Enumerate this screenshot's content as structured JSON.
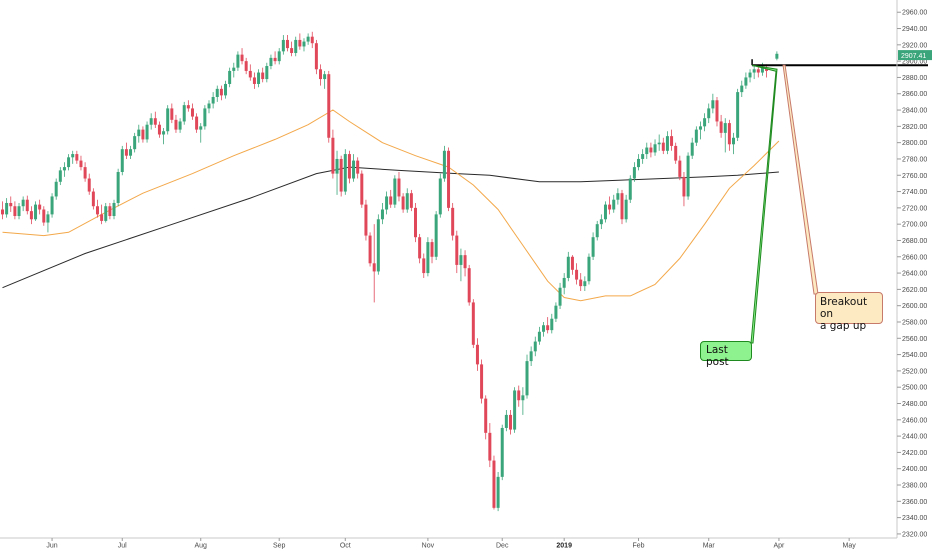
{
  "colors": {
    "up": "#3aa57a",
    "down": "#e0485a",
    "ma_short": "#f3a84a",
    "ma_long": "#2a2a2a",
    "price_tag_bg": "#3aa57a",
    "last_post_bg": "#8ef28e",
    "last_post_line": "#1f8a1f",
    "breakout_bg": "#fde9c2",
    "breakout_line": "#c77a6a",
    "level_line": "#000000"
  },
  "chart_data": {
    "type": "candlestick",
    "y_ticks": [
      "2320.00",
      "2340.00",
      "2360.00",
      "2380.00",
      "2400.00",
      "2420.00",
      "2440.00",
      "2460.00",
      "2480.00",
      "2500.00",
      "2520.00",
      "2540.00",
      "2560.00",
      "2580.00",
      "2600.00",
      "2620.00",
      "2640.00",
      "2660.00",
      "2680.00",
      "2700.00",
      "2720.00",
      "2740.00",
      "2760.00",
      "2780.00",
      "2800.00",
      "2820.00",
      "2840.00",
      "2860.00",
      "2880.00",
      "2900.00",
      "2920.00",
      "2940.00",
      "2960.00"
    ],
    "ylim": [
      2315,
      2975
    ],
    "x_ticks": [
      "Jun",
      "Jul",
      "Aug",
      "Sep",
      "Oct",
      "Nov",
      "Dec",
      "2019",
      "Feb",
      "Mar",
      "Apr",
      "May"
    ],
    "x_tick_bold": "2019",
    "last_price_label": "2907.41",
    "last_price": 2907.41,
    "resistance_level": 2895,
    "candles": [
      [
        2718,
        2728,
        2706,
        2712
      ],
      [
        2712,
        2732,
        2708,
        2726
      ],
      [
        2726,
        2734,
        2715,
        2722
      ],
      [
        2722,
        2728,
        2706,
        2710
      ],
      [
        2710,
        2726,
        2706,
        2722
      ],
      [
        2722,
        2734,
        2716,
        2730
      ],
      [
        2730,
        2735,
        2712,
        2716
      ],
      [
        2716,
        2722,
        2700,
        2706
      ],
      [
        2706,
        2728,
        2704,
        2724
      ],
      [
        2724,
        2730,
        2712,
        2718
      ],
      [
        2718,
        2722,
        2698,
        2702
      ],
      [
        2702,
        2716,
        2690,
        2712
      ],
      [
        2712,
        2738,
        2708,
        2734
      ],
      [
        2734,
        2756,
        2730,
        2752
      ],
      [
        2752,
        2770,
        2748,
        2766
      ],
      [
        2766,
        2776,
        2758,
        2770
      ],
      [
        2770,
        2786,
        2766,
        2782
      ],
      [
        2782,
        2790,
        2774,
        2786
      ],
      [
        2786,
        2790,
        2774,
        2778
      ],
      [
        2778,
        2784,
        2766,
        2770
      ],
      [
        2770,
        2776,
        2752,
        2756
      ],
      [
        2756,
        2762,
        2736,
        2740
      ],
      [
        2740,
        2744,
        2718,
        2722
      ],
      [
        2722,
        2730,
        2708,
        2712
      ],
      [
        2712,
        2724,
        2700,
        2704
      ],
      [
        2704,
        2726,
        2702,
        2722
      ],
      [
        2722,
        2726,
        2706,
        2710
      ],
      [
        2710,
        2730,
        2706,
        2726
      ],
      [
        2726,
        2768,
        2722,
        2764
      ],
      [
        2764,
        2796,
        2760,
        2792
      ],
      [
        2792,
        2800,
        2780,
        2784
      ],
      [
        2784,
        2796,
        2780,
        2792
      ],
      [
        2792,
        2812,
        2788,
        2808
      ],
      [
        2808,
        2822,
        2800,
        2816
      ],
      [
        2816,
        2820,
        2800,
        2804
      ],
      [
        2804,
        2826,
        2800,
        2822
      ],
      [
        2822,
        2836,
        2816,
        2830
      ],
      [
        2830,
        2838,
        2818,
        2822
      ],
      [
        2822,
        2826,
        2806,
        2810
      ],
      [
        2810,
        2818,
        2798,
        2814
      ],
      [
        2814,
        2846,
        2810,
        2842
      ],
      [
        2842,
        2848,
        2824,
        2828
      ],
      [
        2828,
        2834,
        2812,
        2816
      ],
      [
        2816,
        2830,
        2812,
        2826
      ],
      [
        2826,
        2850,
        2822,
        2846
      ],
      [
        2846,
        2852,
        2838,
        2842
      ],
      [
        2842,
        2848,
        2828,
        2832
      ],
      [
        2832,
        2836,
        2812,
        2816
      ],
      [
        2816,
        2824,
        2800,
        2820
      ],
      [
        2820,
        2846,
        2816,
        2842
      ],
      [
        2842,
        2852,
        2836,
        2848
      ],
      [
        2848,
        2862,
        2842,
        2856
      ],
      [
        2856,
        2870,
        2850,
        2866
      ],
      [
        2866,
        2870,
        2852,
        2858
      ],
      [
        2858,
        2876,
        2854,
        2872
      ],
      [
        2872,
        2892,
        2868,
        2888
      ],
      [
        2888,
        2898,
        2880,
        2892
      ],
      [
        2892,
        2912,
        2888,
        2908
      ],
      [
        2908,
        2916,
        2896,
        2900
      ],
      [
        2900,
        2904,
        2884,
        2888
      ],
      [
        2888,
        2896,
        2876,
        2880
      ],
      [
        2880,
        2886,
        2866,
        2872
      ],
      [
        2872,
        2890,
        2868,
        2886
      ],
      [
        2886,
        2892,
        2874,
        2878
      ],
      [
        2878,
        2898,
        2874,
        2894
      ],
      [
        2894,
        2908,
        2890,
        2904
      ],
      [
        2904,
        2912,
        2896,
        2900
      ],
      [
        2900,
        2916,
        2896,
        2912
      ],
      [
        2912,
        2932,
        2908,
        2926
      ],
      [
        2926,
        2932,
        2912,
        2916
      ],
      [
        2916,
        2924,
        2906,
        2910
      ],
      [
        2910,
        2930,
        2906,
        2926
      ],
      [
        2926,
        2934,
        2914,
        2918
      ],
      [
        2918,
        2928,
        2912,
        2924
      ],
      [
        2924,
        2934,
        2920,
        2930
      ],
      [
        2930,
        2936,
        2916,
        2922
      ],
      [
        2922,
        2926,
        2884,
        2890
      ],
      [
        2890,
        2896,
        2870,
        2878
      ],
      [
        2878,
        2888,
        2866,
        2884
      ],
      [
        2884,
        2888,
        2800,
        2806
      ],
      [
        2806,
        2816,
        2756,
        2762
      ],
      [
        2762,
        2790,
        2736,
        2780
      ],
      [
        2780,
        2784,
        2734,
        2740
      ],
      [
        2740,
        2792,
        2736,
        2786
      ],
      [
        2786,
        2790,
        2750,
        2756
      ],
      [
        2756,
        2786,
        2752,
        2778
      ],
      [
        2778,
        2782,
        2756,
        2762
      ],
      [
        2762,
        2766,
        2720,
        2724
      ],
      [
        2724,
        2730,
        2680,
        2686
      ],
      [
        2686,
        2690,
        2648,
        2652
      ],
      [
        2652,
        2700,
        2604,
        2642
      ],
      [
        2642,
        2712,
        2638,
        2706
      ],
      [
        2706,
        2726,
        2700,
        2718
      ],
      [
        2718,
        2740,
        2712,
        2734
      ],
      [
        2734,
        2742,
        2720,
        2724
      ],
      [
        2724,
        2760,
        2720,
        2756
      ],
      [
        2756,
        2764,
        2728,
        2734
      ],
      [
        2734,
        2738,
        2714,
        2718
      ],
      [
        2718,
        2744,
        2714,
        2738
      ],
      [
        2738,
        2742,
        2716,
        2720
      ],
      [
        2720,
        2726,
        2678,
        2684
      ],
      [
        2684,
        2688,
        2652,
        2658
      ],
      [
        2658,
        2664,
        2634,
        2640
      ],
      [
        2640,
        2684,
        2636,
        2678
      ],
      [
        2678,
        2682,
        2652,
        2660
      ],
      [
        2660,
        2716,
        2656,
        2712
      ],
      [
        2712,
        2762,
        2708,
        2756
      ],
      [
        2756,
        2796,
        2752,
        2790
      ],
      [
        2790,
        2794,
        2716,
        2720
      ],
      [
        2720,
        2726,
        2680,
        2686
      ],
      [
        2686,
        2692,
        2640,
        2650
      ],
      [
        2650,
        2670,
        2630,
        2662
      ],
      [
        2662,
        2668,
        2636,
        2646
      ],
      [
        2646,
        2650,
        2600,
        2604
      ],
      [
        2604,
        2608,
        2548,
        2552
      ],
      [
        2552,
        2560,
        2520,
        2528
      ],
      [
        2528,
        2534,
        2480,
        2486
      ],
      [
        2486,
        2490,
        2436,
        2444
      ],
      [
        2444,
        2456,
        2402,
        2410
      ],
      [
        2410,
        2416,
        2350,
        2352
      ],
      [
        2352,
        2396,
        2348,
        2390
      ],
      [
        2390,
        2454,
        2386,
        2450
      ],
      [
        2450,
        2472,
        2446,
        2466
      ],
      [
        2466,
        2472,
        2442,
        2448
      ],
      [
        2448,
        2500,
        2444,
        2496
      ],
      [
        2496,
        2502,
        2476,
        2484
      ],
      [
        2484,
        2500,
        2466,
        2490
      ],
      [
        2490,
        2540,
        2486,
        2532
      ],
      [
        2532,
        2550,
        2526,
        2544
      ],
      [
        2544,
        2562,
        2538,
        2556
      ],
      [
        2556,
        2574,
        2552,
        2568
      ],
      [
        2568,
        2580,
        2562,
        2576
      ],
      [
        2576,
        2586,
        2566,
        2570
      ],
      [
        2570,
        2590,
        2566,
        2584
      ],
      [
        2584,
        2604,
        2580,
        2600
      ],
      [
        2600,
        2628,
        2596,
        2622
      ],
      [
        2622,
        2640,
        2614,
        2634
      ],
      [
        2634,
        2666,
        2630,
        2660
      ],
      [
        2660,
        2662,
        2638,
        2644
      ],
      [
        2644,
        2652,
        2626,
        2632
      ],
      [
        2632,
        2640,
        2618,
        2624
      ],
      [
        2624,
        2636,
        2618,
        2630
      ],
      [
        2630,
        2664,
        2626,
        2660
      ],
      [
        2660,
        2690,
        2656,
        2684
      ],
      [
        2684,
        2704,
        2680,
        2700
      ],
      [
        2700,
        2712,
        2694,
        2706
      ],
      [
        2706,
        2728,
        2702,
        2724
      ],
      [
        2724,
        2734,
        2712,
        2718
      ],
      [
        2718,
        2736,
        2714,
        2730
      ],
      [
        2730,
        2744,
        2724,
        2738
      ],
      [
        2738,
        2742,
        2700,
        2706
      ],
      [
        2706,
        2736,
        2702,
        2730
      ],
      [
        2730,
        2760,
        2726,
        2756
      ],
      [
        2756,
        2776,
        2752,
        2770
      ],
      [
        2770,
        2786,
        2766,
        2780
      ],
      [
        2780,
        2792,
        2774,
        2786
      ],
      [
        2786,
        2800,
        2780,
        2794
      ],
      [
        2794,
        2800,
        2782,
        2788
      ],
      [
        2788,
        2804,
        2784,
        2798
      ],
      [
        2798,
        2810,
        2790,
        2800
      ],
      [
        2800,
        2806,
        2786,
        2790
      ],
      [
        2790,
        2814,
        2786,
        2808
      ],
      [
        2808,
        2816,
        2790,
        2796
      ],
      [
        2796,
        2800,
        2774,
        2778
      ],
      [
        2778,
        2784,
        2754,
        2758
      ],
      [
        2758,
        2764,
        2722,
        2734
      ],
      [
        2734,
        2788,
        2730,
        2784
      ],
      [
        2784,
        2806,
        2780,
        2800
      ],
      [
        2800,
        2820,
        2796,
        2816
      ],
      [
        2816,
        2826,
        2804,
        2820
      ],
      [
        2820,
        2836,
        2814,
        2830
      ],
      [
        2830,
        2848,
        2824,
        2842
      ],
      [
        2842,
        2860,
        2836,
        2852
      ],
      [
        2852,
        2856,
        2820,
        2826
      ],
      [
        2826,
        2834,
        2806,
        2812
      ],
      [
        2812,
        2830,
        2788,
        2824
      ],
      [
        2824,
        2828,
        2790,
        2798
      ],
      [
        2798,
        2812,
        2786,
        2806
      ],
      [
        2806,
        2866,
        2802,
        2862
      ],
      [
        2862,
        2876,
        2856,
        2870
      ],
      [
        2870,
        2886,
        2866,
        2880
      ],
      [
        2880,
        2890,
        2874,
        2886
      ],
      [
        2886,
        2894,
        2878,
        2890
      ],
      [
        2890,
        2896,
        2880,
        2886
      ],
      [
        2886,
        2898,
        2882,
        2892
      ],
      [
        2892,
        2896,
        2880,
        2888
      ]
    ],
    "gap_candle": [
      2903,
      2912,
      2901,
      2909
    ],
    "ma_short": [
      [
        0,
        2690
      ],
      [
        10,
        2686
      ],
      [
        16,
        2690
      ],
      [
        24,
        2712
      ],
      [
        34,
        2738
      ],
      [
        46,
        2762
      ],
      [
        56,
        2784
      ],
      [
        66,
        2804
      ],
      [
        74,
        2822
      ],
      [
        80,
        2840
      ],
      [
        84,
        2826
      ],
      [
        92,
        2800
      ],
      [
        100,
        2784
      ],
      [
        108,
        2770
      ],
      [
        114,
        2748
      ],
      [
        120,
        2718
      ],
      [
        126,
        2674
      ],
      [
        132,
        2630
      ],
      [
        136,
        2610
      ],
      [
        140,
        2606
      ],
      [
        146,
        2612
      ],
      [
        152,
        2612
      ],
      [
        158,
        2626
      ],
      [
        164,
        2658
      ],
      [
        170,
        2700
      ],
      [
        176,
        2744
      ],
      [
        182,
        2772
      ],
      [
        188,
        2802
      ]
    ],
    "ma_long": [
      [
        0,
        2622
      ],
      [
        20,
        2664
      ],
      [
        40,
        2698
      ],
      [
        60,
        2732
      ],
      [
        76,
        2762
      ],
      [
        84,
        2770
      ],
      [
        96,
        2766
      ],
      [
        110,
        2762
      ],
      [
        118,
        2760
      ],
      [
        130,
        2752
      ],
      [
        140,
        2752
      ],
      [
        150,
        2754
      ],
      [
        160,
        2756
      ],
      [
        170,
        2758
      ],
      [
        178,
        2760
      ],
      [
        188,
        2764
      ]
    ],
    "annotations": [
      {
        "text": "Last post",
        "anchor_index": 181.5,
        "anchor_value": 2895
      },
      {
        "text": "Breakout on a gap up",
        "anchor_index": 189,
        "anchor_value": 2895
      }
    ]
  },
  "callouts": {
    "last_post": "Last post",
    "breakout_line1": "Breakout on",
    "breakout_line2": "a gap up"
  }
}
